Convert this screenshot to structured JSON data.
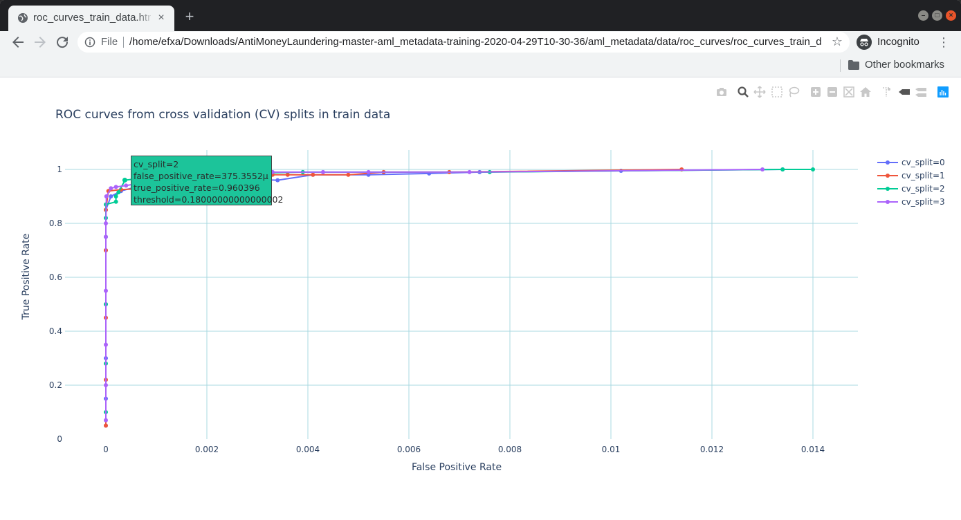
{
  "browser": {
    "tab_title": "roc_curves_train_data.html",
    "tab_close": "×",
    "new_tab": "+",
    "omnibox_scheme": "File",
    "url": "/home/efxa/Downloads/AntiMoneyLaundering-master-aml_metadata-training-2020-04-29T10-30-36/aml_metadata/data/roc_curves/roc_curves_train_data.html",
    "star": "☆",
    "profile_label": "Incognito",
    "menu": "⋮",
    "bookmark_folder": "Other bookmarks"
  },
  "hover": {
    "line1": "cv_split=2",
    "line2": "false_positive_rate=375.3552µ",
    "line3": "true_positive_rate=0.960396",
    "line4": "threshold=0.18000000000000002"
  },
  "chart_data": {
    "type": "line",
    "title": "ROC curves from cross validation (CV) splits in train data",
    "xlabel": "False Positive Rate",
    "ylabel": "True Positive Rate",
    "xlim": [
      -0.0008,
      0.0149
    ],
    "ylim": [
      0,
      1.05
    ],
    "x_ticks": [
      0,
      0.002,
      0.004,
      0.006,
      0.008,
      0.01,
      0.012,
      0.014
    ],
    "x_tick_labels": [
      "0",
      "0.002",
      "0.004",
      "0.006",
      "0.008",
      "0.01",
      "0.012",
      "0.014"
    ],
    "y_ticks": [
      0,
      0.2,
      0.4,
      0.6,
      0.8,
      1
    ],
    "y_tick_labels": [
      "0",
      "0.2",
      "0.4",
      "0.6",
      "0.8",
      "1"
    ],
    "grid": true,
    "legend_position": "right",
    "series": [
      {
        "name": "cv_split=0",
        "color": "#636efa",
        "points": [
          [
            0,
            0.05
          ],
          [
            0,
            0.15
          ],
          [
            0,
            0.3
          ],
          [
            0,
            0.5
          ],
          [
            0,
            0.7
          ],
          [
            0,
            0.85
          ],
          [
            0.0001,
            0.9
          ],
          [
            0.0003,
            0.92
          ],
          [
            0.0006,
            0.935
          ],
          [
            0.001,
            0.94
          ],
          [
            0.002,
            0.96
          ],
          [
            0.0027,
            0.965
          ],
          [
            0.0034,
            0.96
          ],
          [
            0.0041,
            0.98
          ],
          [
            0.0052,
            0.98
          ],
          [
            0.0064,
            0.985
          ],
          [
            0.0074,
            0.99
          ],
          [
            0.0102,
            0.995
          ],
          [
            0.0134,
            1.0
          ]
        ]
      },
      {
        "name": "cv_split=1",
        "color": "#ef553b",
        "points": [
          [
            0,
            0.05
          ],
          [
            0,
            0.22
          ],
          [
            0,
            0.45
          ],
          [
            0,
            0.7
          ],
          [
            0,
            0.85
          ],
          [
            5e-05,
            0.92
          ],
          [
            0.0003,
            0.925
          ],
          [
            0.0008,
            0.93
          ],
          [
            0.0015,
            0.97
          ],
          [
            0.0025,
            0.975
          ],
          [
            0.0033,
            0.98
          ],
          [
            0.0036,
            0.98
          ],
          [
            0.0041,
            0.98
          ],
          [
            0.0048,
            0.98
          ],
          [
            0.0055,
            0.99
          ],
          [
            0.0068,
            0.99
          ],
          [
            0.0114,
            1.0
          ]
        ]
      },
      {
        "name": "cv_split=2",
        "color": "#00cc96",
        "points": [
          [
            0,
            0.1
          ],
          [
            0,
            0.28
          ],
          [
            0,
            0.5
          ],
          [
            0,
            0.75
          ],
          [
            0,
            0.82
          ],
          [
            0,
            0.87
          ],
          [
            0.0002,
            0.88
          ],
          [
            0.0002,
            0.9
          ],
          [
            0.00025,
            0.915
          ],
          [
            0.00038,
            0.96
          ],
          [
            0.0008,
            0.97
          ],
          [
            0.0016,
            0.98
          ],
          [
            0.0026,
            0.985
          ],
          [
            0.0039,
            0.99
          ],
          [
            0.0076,
            0.99
          ],
          [
            0.0134,
            1.0
          ],
          [
            0.014,
            1.0
          ]
        ]
      },
      {
        "name": "cv_split=3",
        "color": "#ab63fa",
        "points": [
          [
            0,
            0.07
          ],
          [
            0,
            0.2
          ],
          [
            0,
            0.35
          ],
          [
            0,
            0.55
          ],
          [
            0,
            0.75
          ],
          [
            0,
            0.8
          ],
          [
            1e-05,
            0.9
          ],
          [
            0.0001,
            0.93
          ],
          [
            0.0002,
            0.935
          ],
          [
            0.0004,
            0.94
          ],
          [
            0.0007,
            0.95
          ],
          [
            0.0011,
            0.96
          ],
          [
            0.002,
            0.97
          ],
          [
            0.0033,
            0.99
          ],
          [
            0.0043,
            0.99
          ],
          [
            0.0052,
            0.99
          ],
          [
            0.0072,
            0.99
          ],
          [
            0.013,
            1.0
          ]
        ]
      }
    ]
  }
}
